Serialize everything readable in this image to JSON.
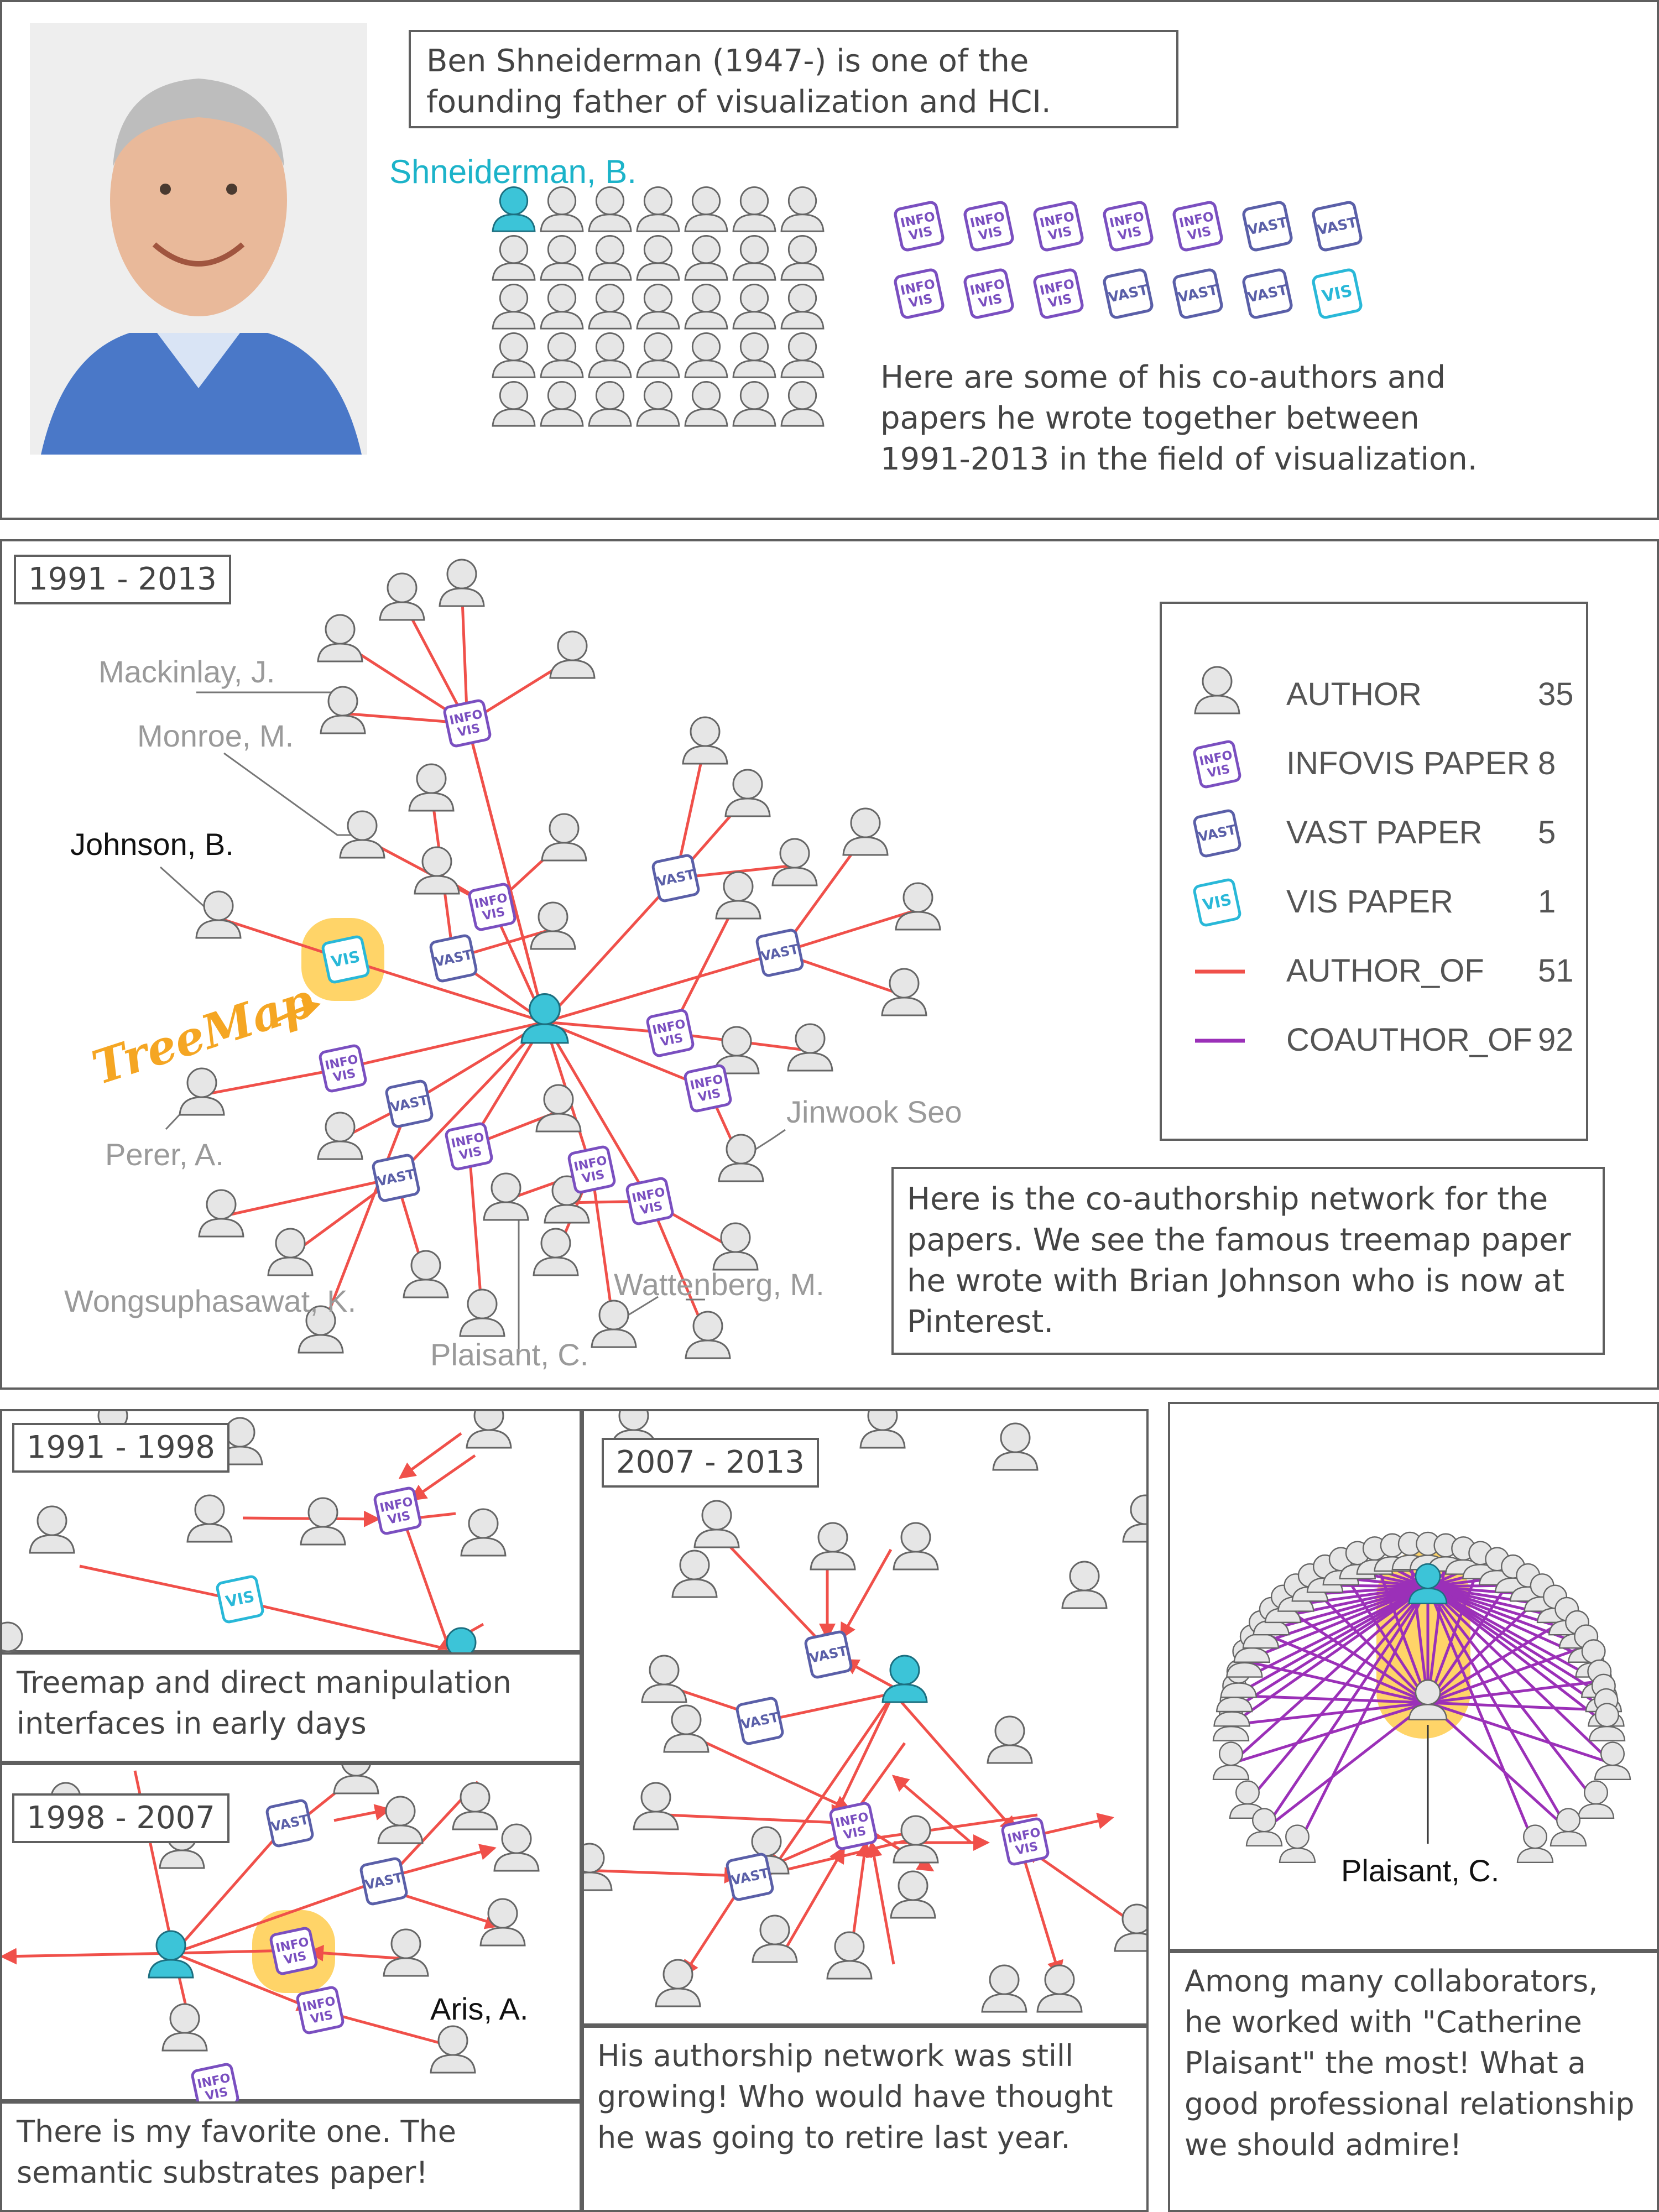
{
  "panel1": {
    "intro": "Ben Shneiderman (1947-) is one of the founding father of visualization and HCI.",
    "author_label": "Shneiderman, B.",
    "desc": "Here are some of his co-authors and papers he wrote together between 1991-2013 in the field of visualization.",
    "paper_rows": [
      [
        "INFO VIS",
        "INFO VIS",
        "INFO VIS",
        "INFO VIS",
        "INFO VIS",
        "VAST",
        "VAST"
      ],
      [
        "INFO VIS",
        "INFO VIS",
        "INFO VIS",
        "VAST",
        "VAST",
        "VAST",
        "VIS"
      ]
    ]
  },
  "panel2": {
    "period": "1991 - 2013",
    "labels": {
      "mackinlay": "Mackinlay, J.",
      "monroe": "Monroe, M.",
      "johnson": "Johnson, B.",
      "perer": "Perer, A.",
      "wong": "Wongsuphasawat, K.",
      "plaisant": "Plaisant, C.",
      "wattenberg": "Wattenberg, M.",
      "jinwook": "Jinwook Seo",
      "treemap": "TreeMap"
    },
    "legend": [
      {
        "icon": "author",
        "name": "AUTHOR",
        "count": "35"
      },
      {
        "icon": "infovis",
        "name": "INFOVIS PAPER",
        "count": "8"
      },
      {
        "icon": "vast",
        "name": "VAST PAPER",
        "count": "5"
      },
      {
        "icon": "vis",
        "name": "VIS PAPER",
        "count": "1"
      },
      {
        "icon": "author_of",
        "name": "AUTHOR_OF",
        "count": "51"
      },
      {
        "icon": "coauthor_of",
        "name": "COAUTHOR_OF",
        "count": "92"
      }
    ],
    "caption": "Here is the co-authorship network for the papers. We see the famous treemap paper he wrote with Brian Johnson who is now at Pinterest."
  },
  "panel3": {
    "period": "1991 - 1998",
    "caption": "Treemap and direct manipulation interfaces in early days"
  },
  "panel4": {
    "period": "1998 - 2007",
    "label": "Aris, A.",
    "caption": "There is my favorite one. The semantic substrates paper!"
  },
  "panel5": {
    "period": "2007 - 2013",
    "caption": "His authorship network was still growing! Who would have thought he was going to retire last year."
  },
  "panel6": {
    "label": "Plaisant, C.",
    "caption": "Among many collaborators, he worked with \"Catherine Plaisant\" the most! What a good professional relationship we should admire!"
  },
  "colors": {
    "author_of": "#f0504a",
    "coauthor_of": "#9b30b8",
    "infovis": "#7a4fc0",
    "vast": "#5a5fa8",
    "vis": "#29b8d8",
    "highlight": "#ffcc4d",
    "center": "#3cc4d8"
  }
}
